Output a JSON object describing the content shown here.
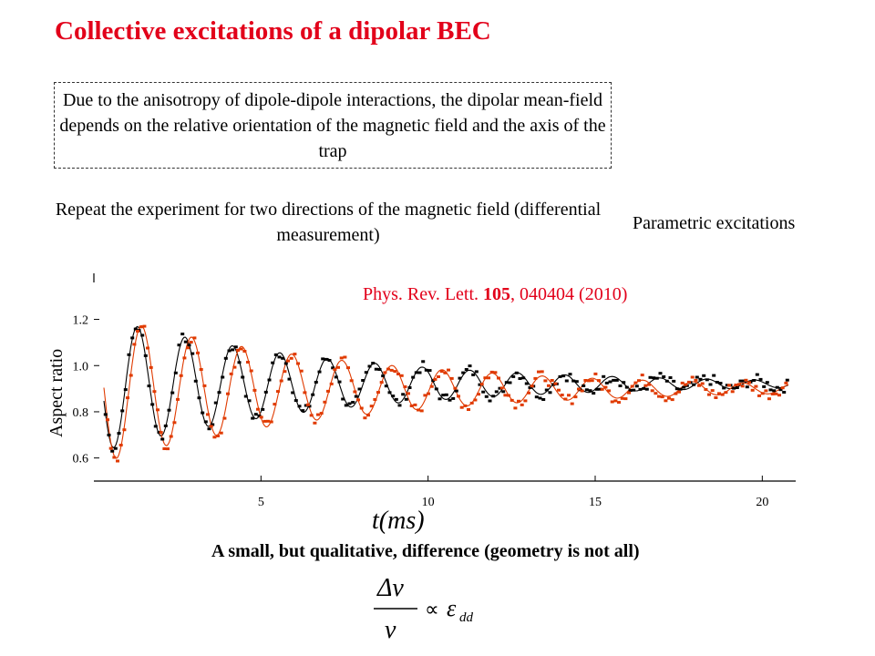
{
  "title": "Collective excitations of a dipolar BEC",
  "box_text": "Due to the anisotropy of dipole-dipole interactions, the dipolar mean-field  depends on the relative orientation of the magnetic field and the axis of the trap",
  "repeat_text": "Repeat the experiment for two directions of the magnetic field (differential measurement)",
  "parametric_text": "Parametric excitations",
  "reference": {
    "journal": "Phys. Rev. Lett. ",
    "volume": "105",
    "rest": ", 040404 (2010)"
  },
  "conclusion": "A small, but qualitative, difference (geometry is not all)",
  "formula": {
    "numerator": "Δν",
    "denominator": "ν",
    "relation": "∝",
    "symbol": "ε",
    "subscript": "dd"
  },
  "colors": {
    "title": "#e2001a",
    "series_black": "#000000",
    "series_red": "#e03a00"
  },
  "chart_data": {
    "type": "line",
    "xlabel": "t(ms)",
    "ylabel": "Aspect ratio",
    "xlim": [
      0,
      21
    ],
    "ylim": [
      0.5,
      1.36
    ],
    "xticks": [
      5,
      10,
      15,
      20
    ],
    "yticks": [
      0.6,
      0.8,
      1.0,
      1.2
    ],
    "series": [
      {
        "color": "black",
        "mean": 0.92,
        "amplitude0": 0.3,
        "decay_ms": 7,
        "freq_khz": 0.704,
        "phase": 0.5,
        "t_start": 0.3,
        "t_end": 20.8
      },
      {
        "color": "red",
        "mean": 0.9,
        "amplitude0": 0.33,
        "decay_ms": 7.5,
        "freq_khz": 0.667,
        "phase": 0.3,
        "t_start": 0.3,
        "t_end": 20.8
      }
    ]
  }
}
